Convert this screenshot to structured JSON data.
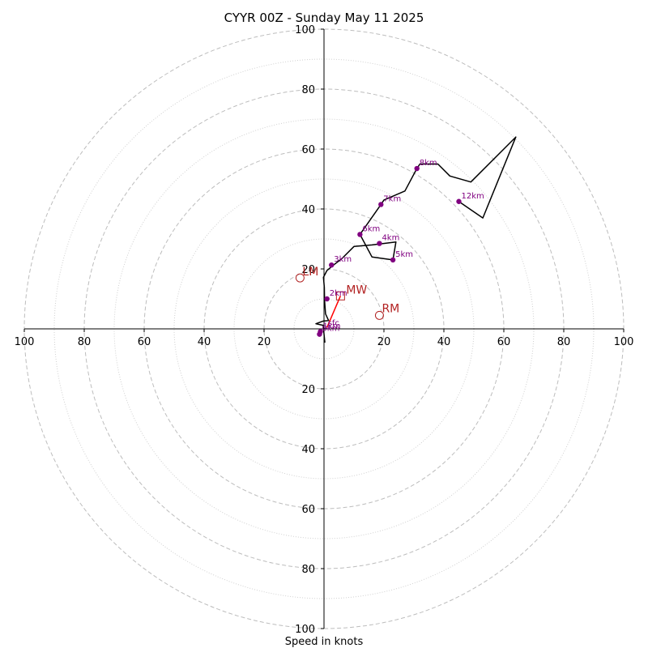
{
  "chart_data": {
    "type": "scatter",
    "title": "CYYR 00Z - Sunday May 11 2025",
    "xlabel": "Speed in knots",
    "ylabel": "",
    "xlim": [
      -100,
      100
    ],
    "ylim": [
      -100,
      100
    ],
    "grid": true,
    "ring_major": [
      20,
      40,
      60,
      80,
      100
    ],
    "ring_minor": [
      10,
      30,
      50,
      70,
      90
    ],
    "x_ticks": [
      {
        "value": -100,
        "label": "100"
      },
      {
        "value": -80,
        "label": "80"
      },
      {
        "value": -60,
        "label": "60"
      },
      {
        "value": -40,
        "label": "40"
      },
      {
        "value": -20,
        "label": "20"
      },
      {
        "value": 20,
        "label": "20"
      },
      {
        "value": 40,
        "label": "40"
      },
      {
        "value": 60,
        "label": "60"
      },
      {
        "value": 80,
        "label": "80"
      },
      {
        "value": 100,
        "label": "100"
      }
    ],
    "y_ticks": [
      {
        "value": 100,
        "label": "100"
      },
      {
        "value": 80,
        "label": "80"
      },
      {
        "value": 60,
        "label": "60"
      },
      {
        "value": 40,
        "label": "40"
      },
      {
        "value": 20,
        "label": "20"
      },
      {
        "value": -20,
        "label": "20"
      },
      {
        "value": -40,
        "label": "40"
      },
      {
        "value": -60,
        "label": "60"
      },
      {
        "value": -80,
        "label": "80"
      },
      {
        "value": -100,
        "label": "100"
      }
    ],
    "hodograph_line": {
      "color": "#000000",
      "points": [
        [
          0.3,
          -4.6
        ],
        [
          -0.3,
          1.2
        ],
        [
          -2.7,
          1.7
        ],
        [
          -0.3,
          2.6
        ],
        [
          0.8,
          2.7
        ],
        [
          1.5,
          2.8
        ],
        [
          0.5,
          5.0
        ],
        [
          0.2,
          9.5
        ],
        [
          0.1,
          13.9
        ],
        [
          -0.2,
          17.2
        ],
        [
          1.0,
          19.5
        ],
        [
          3.2,
          21.3
        ],
        [
          6.0,
          23.5
        ],
        [
          10.0,
          27.5
        ],
        [
          16.0,
          28.0
        ],
        [
          24.0,
          29.0
        ],
        [
          23.0,
          23.0
        ],
        [
          16.0,
          24.0
        ],
        [
          12.0,
          31.5
        ],
        [
          19.0,
          41.5
        ],
        [
          20.0,
          43.0
        ],
        [
          27.0,
          46.0
        ],
        [
          31.0,
          53.5
        ],
        [
          32.0,
          55.0
        ],
        [
          38.0,
          55.0
        ],
        [
          42.0,
          51.0
        ],
        [
          49.0,
          49.0
        ],
        [
          64.0,
          64.0
        ],
        [
          53.0,
          37.0
        ],
        [
          45.0,
          42.5
        ]
      ]
    },
    "height_markers": {
      "color": "#800080",
      "points": [
        {
          "label": "0km",
          "x": -1.5,
          "y": -1.8
        },
        {
          "label": "1km",
          "x": -1.2,
          "y": -0.9
        },
        {
          "label": "2km",
          "x": 1.0,
          "y": 10.0
        },
        {
          "label": "3km",
          "x": 2.5,
          "y": 21.3
        },
        {
          "label": "4km",
          "x": 18.5,
          "y": 28.5
        },
        {
          "label": "5km",
          "x": 23.0,
          "y": 23.0
        },
        {
          "label": "6km",
          "x": 12.0,
          "y": 31.5
        },
        {
          "label": "7km",
          "x": 19.0,
          "y": 41.5
        },
        {
          "label": "8km",
          "x": 31.0,
          "y": 53.5
        },
        {
          "label": "12km",
          "x": 45.0,
          "y": 42.5
        }
      ]
    },
    "storm_motion": {
      "color": "#b22222",
      "surface_label": "sfc",
      "surface_point": [
        1.0,
        0.5
      ],
      "mean_wind": {
        "label": "MW",
        "x": 5.5,
        "y": 11.0
      },
      "left_mover": {
        "label": "LM",
        "x": -8.0,
        "y": 17.0
      },
      "right_mover": {
        "label": "RM",
        "x": 18.5,
        "y": 4.5
      }
    }
  }
}
